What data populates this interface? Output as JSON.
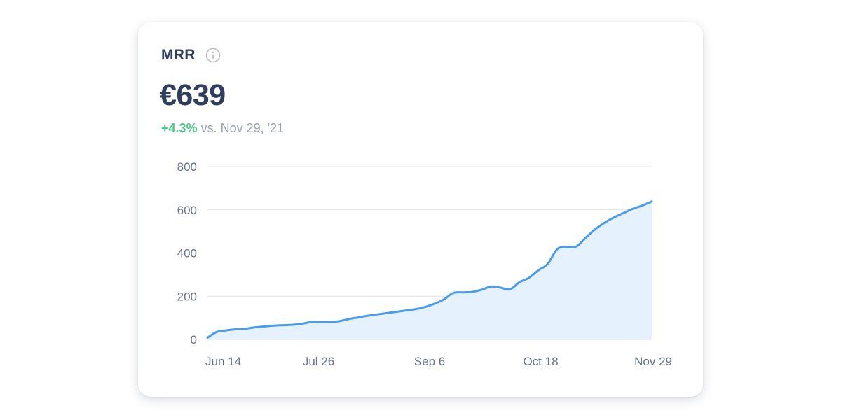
{
  "card": {
    "title": "MRR",
    "info_icon": "info-circle-icon",
    "value": "€639",
    "change_pct": "+4.3%",
    "change_comparison": "vs. Nov 29, '21"
  },
  "colors": {
    "line": "#4b9bec",
    "fill": "#e5f1fc",
    "grid": "#dde2ea",
    "positive": "#4cc785",
    "text_primary": "#2f3d5f",
    "text_muted": "#9aa1b0"
  },
  "chart_data": {
    "type": "area",
    "title": "",
    "xlabel": "",
    "ylabel": "",
    "ylim": [
      0,
      800
    ],
    "y_ticks": [
      0,
      200,
      400,
      600,
      800
    ],
    "x_ticks": [
      "Jun 14",
      "Jul 26",
      "Sep 6",
      "Oct 18",
      "Nov 29"
    ],
    "grid": true,
    "series": [
      {
        "values": [
          8,
          35,
          42,
          47,
          50,
          56,
          60,
          64,
          66,
          68,
          73,
          80,
          80,
          81,
          85,
          95,
          102,
          110,
          116,
          122,
          128,
          134,
          140,
          150,
          165,
          185,
          215,
          218,
          220,
          230,
          245,
          240,
          232,
          265,
          285,
          320,
          350,
          418,
          428,
          430,
          470,
          510,
          540,
          565,
          585,
          605,
          620,
          639
        ]
      }
    ]
  }
}
